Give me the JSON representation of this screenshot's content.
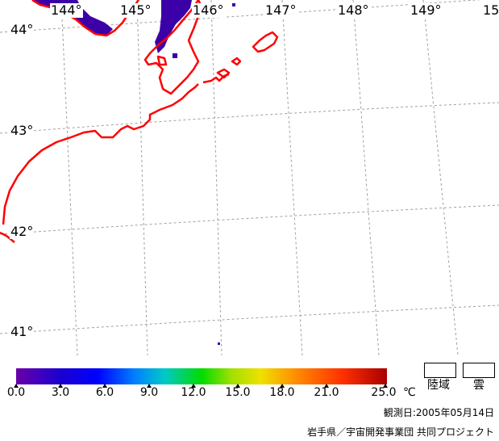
{
  "map": {
    "longitude_labels": [
      "144°",
      "145°",
      "146°",
      "147°",
      "148°",
      "149°",
      "15"
    ],
    "latitude_labels": [
      "44°",
      "43°",
      "42°",
      "41°"
    ],
    "colors": {
      "coastline": "#ff0000",
      "grid": "#a0a0a0",
      "sst_pixels": "#3c00a8"
    }
  },
  "colorbar": {
    "ticks": [
      "0.0",
      "3.0",
      "6.0",
      "9.0",
      "12.0",
      "15.0",
      "18.0",
      "21.0",
      "25.0"
    ],
    "unit": "℃"
  },
  "legend": {
    "land_label": "陸域",
    "cloud_label": "雲"
  },
  "observation_date": "観測日:2005年05月14日",
  "credit": "岩手県／宇宙開発事業団 共同プロジェクト"
}
